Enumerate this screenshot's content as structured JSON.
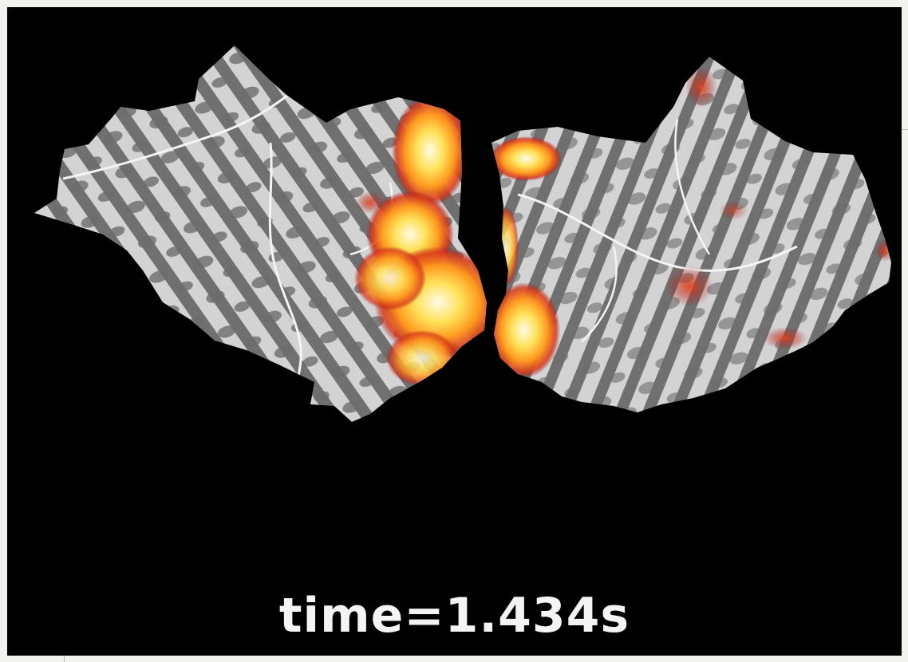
{
  "viewer": {
    "time_label": "time=1.434s",
    "background_color": "#000000",
    "time": {
      "value": 1.434,
      "unit": "s"
    }
  },
  "surface": {
    "type": "flatmap",
    "hemispheres": [
      "left",
      "right"
    ],
    "curvature_colors": {
      "gyri": "#d2d2d2",
      "sulci": "#6f6f6f"
    },
    "activation_colormap": [
      "#a01010",
      "#e2401a",
      "#ff9a1f",
      "#ffe25a",
      "#fffbe8"
    ]
  }
}
